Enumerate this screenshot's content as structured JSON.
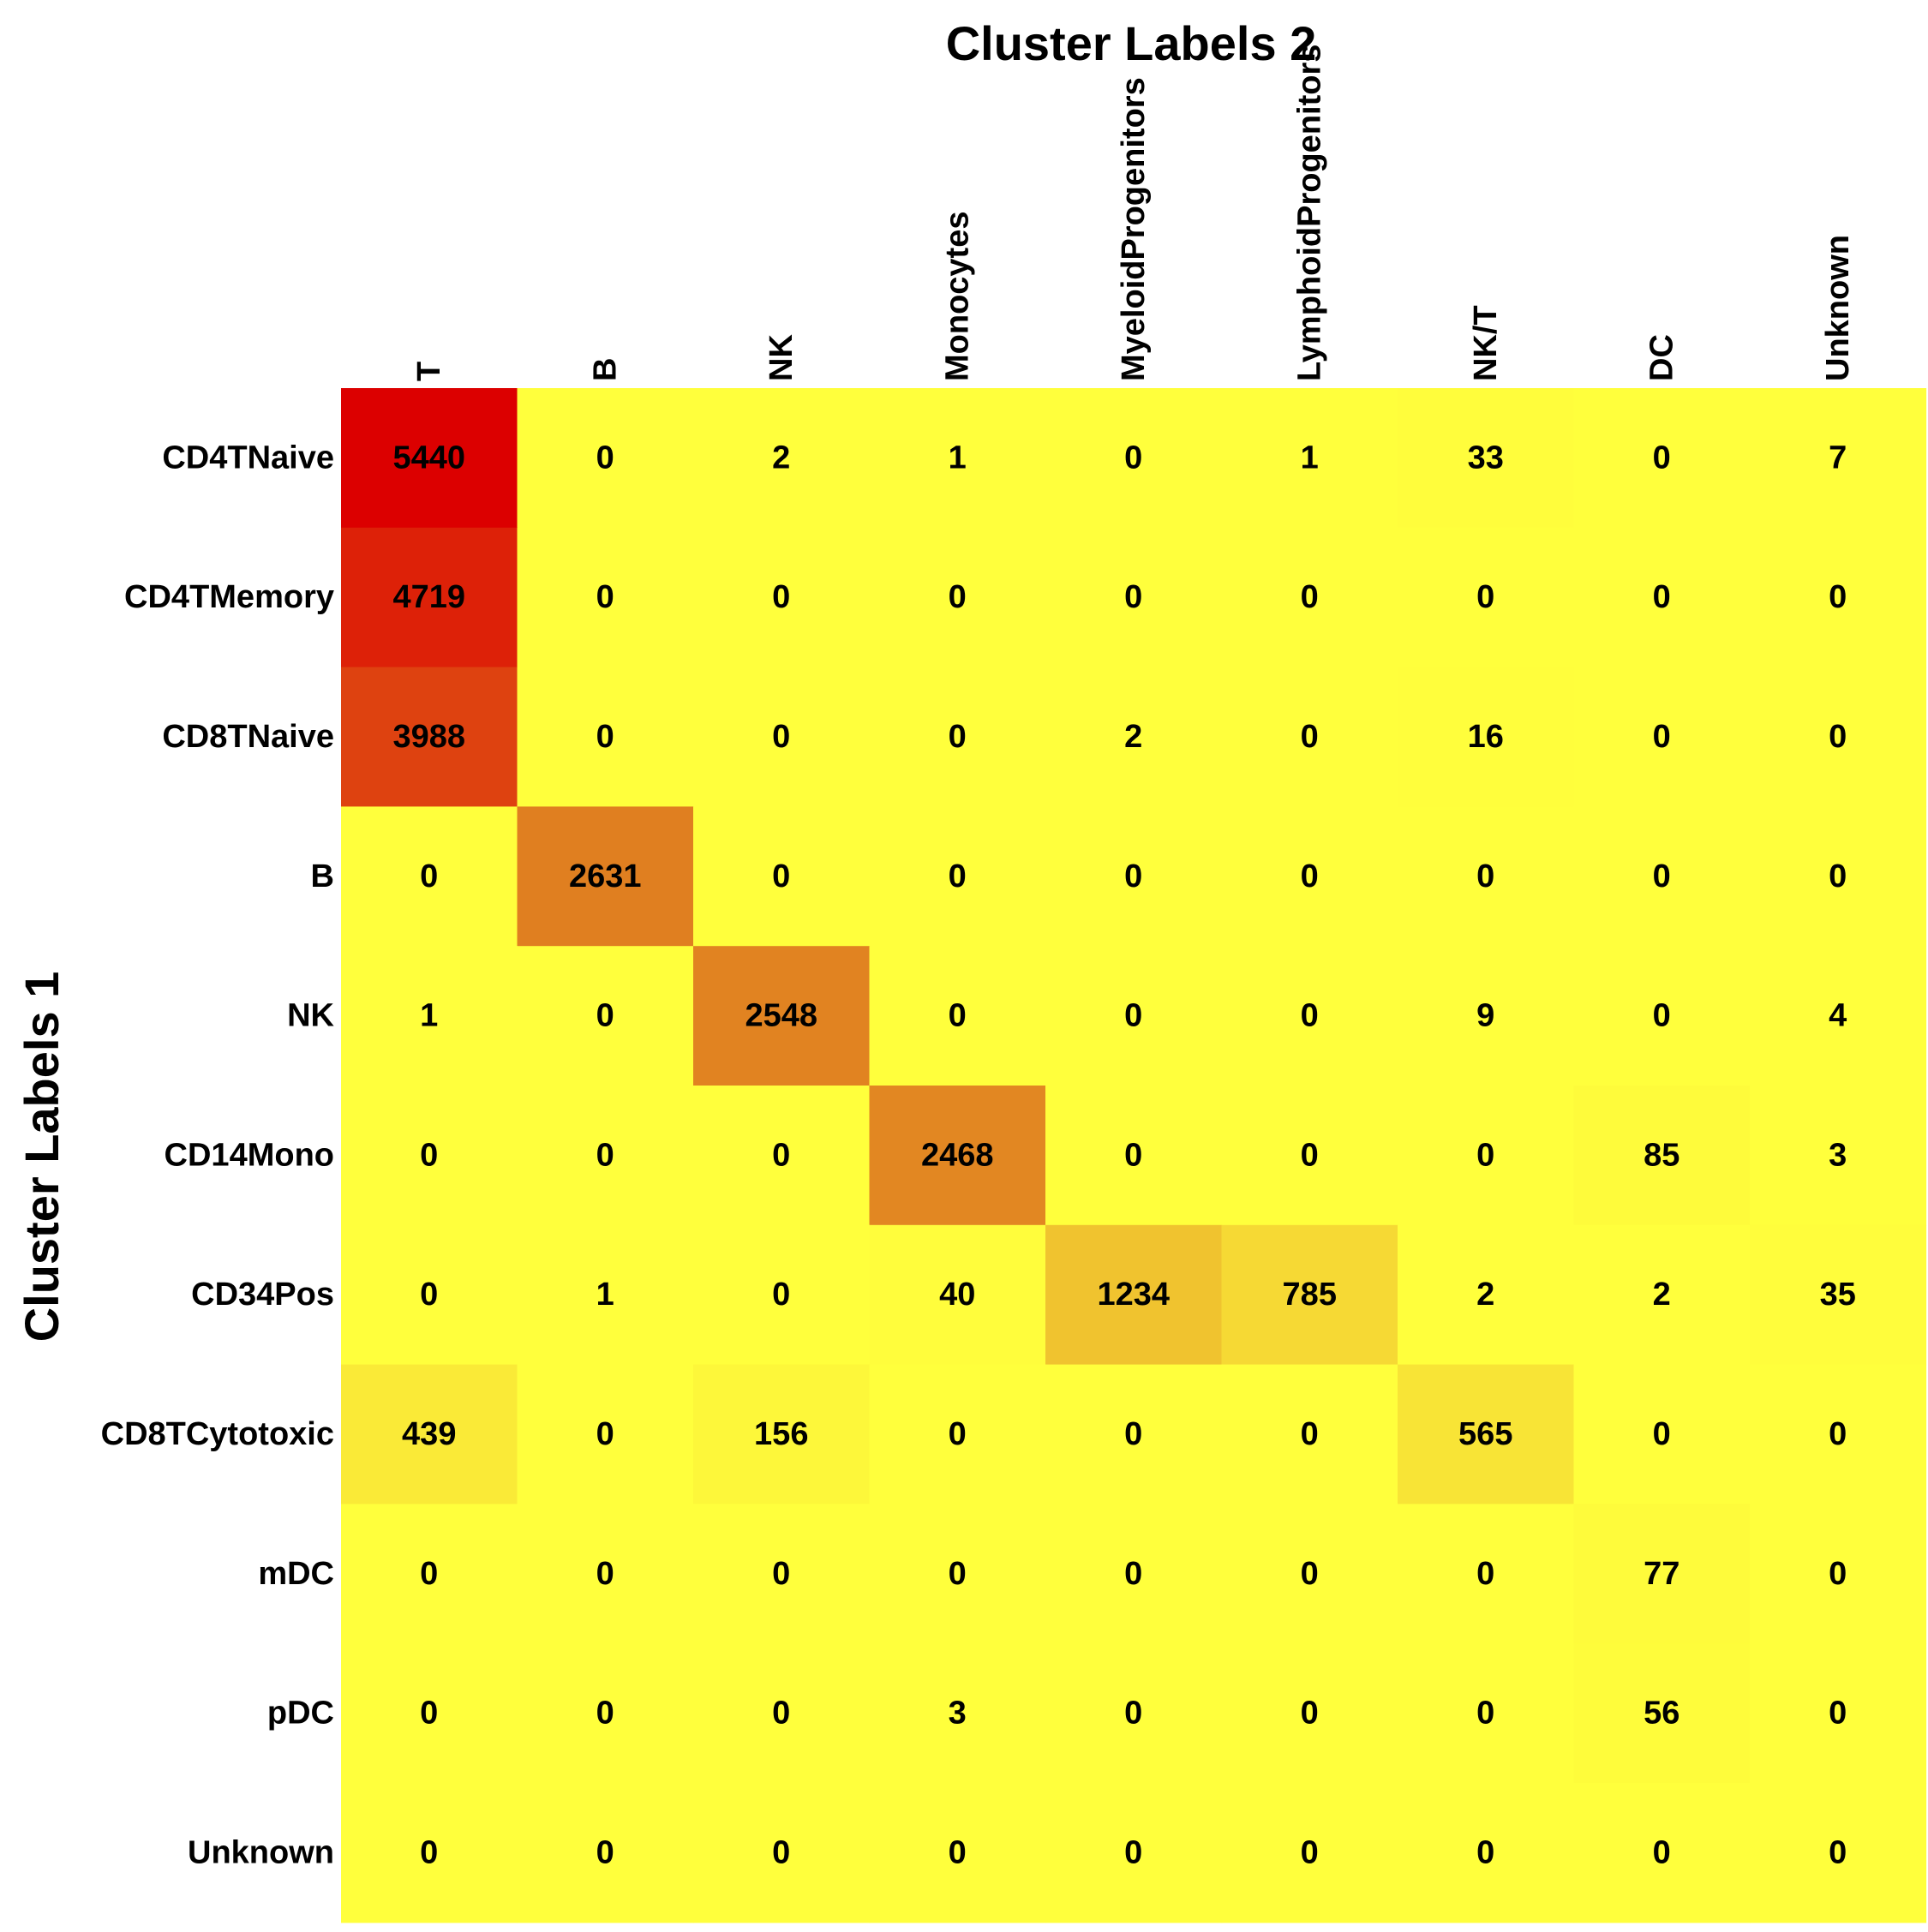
{
  "chart_data": {
    "type": "heatmap",
    "title": "Cluster Labels 2",
    "xlabel": "Cluster Labels 2",
    "ylabel": "Cluster Labels 1",
    "columns": [
      "T",
      "B",
      "NK",
      "Monocytes",
      "MyeloidProgenitors",
      "LymphoidProgenitors",
      "NK/T",
      "DC",
      "Unknown"
    ],
    "rows": [
      "CD4TNaive",
      "CD4TMemory",
      "CD8TNaive",
      "B",
      "NK",
      "CD14Mono",
      "CD34Pos",
      "CD8TCytotoxic",
      "mDC",
      "pDC",
      "Unknown"
    ],
    "values": [
      [
        5440,
        0,
        2,
        1,
        0,
        1,
        33,
        0,
        7
      ],
      [
        4719,
        0,
        0,
        0,
        0,
        0,
        0,
        0,
        0
      ],
      [
        3988,
        0,
        0,
        0,
        2,
        0,
        16,
        0,
        0
      ],
      [
        0,
        2631,
        0,
        0,
        0,
        0,
        0,
        0,
        0
      ],
      [
        1,
        0,
        2548,
        0,
        0,
        0,
        9,
        0,
        4
      ],
      [
        0,
        0,
        0,
        2468,
        0,
        0,
        0,
        85,
        3
      ],
      [
        0,
        1,
        0,
        40,
        1234,
        785,
        2,
        2,
        35
      ],
      [
        439,
        0,
        156,
        0,
        0,
        0,
        565,
        0,
        0
      ],
      [
        0,
        0,
        0,
        0,
        0,
        0,
        0,
        77,
        0
      ],
      [
        0,
        0,
        0,
        3,
        0,
        0,
        0,
        56,
        0
      ],
      [
        0,
        0,
        0,
        0,
        0,
        0,
        0,
        0,
        0
      ]
    ],
    "colormap": "heat (yellow = low, red = high)",
    "color_low": "#ffff3c",
    "color_mid": "#e08020",
    "color_high": "#dc0000",
    "value_range": [
      0,
      5440
    ],
    "legend": "none",
    "grid": false
  }
}
